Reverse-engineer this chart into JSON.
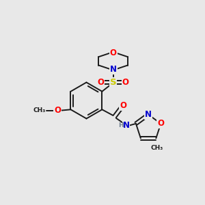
{
  "bg_color": "#e8e8e8",
  "bond_color": "#1a1a1a",
  "atom_colors": {
    "O": "#ff0000",
    "N": "#0000cd",
    "S": "#cccc00",
    "C": "#1a1a1a",
    "H": "#708090"
  },
  "lw": 1.4,
  "fs": 8.5
}
